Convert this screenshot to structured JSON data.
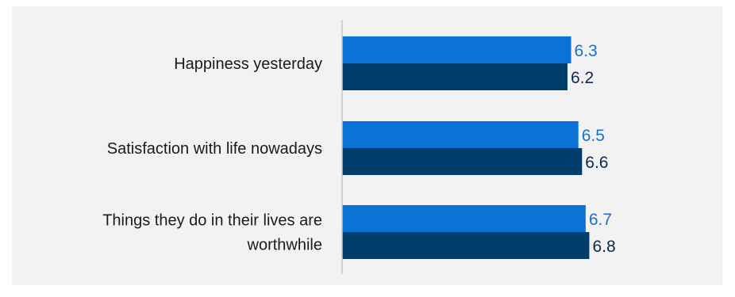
{
  "chart_data": {
    "type": "bar",
    "orientation": "horizontal",
    "categories": [
      [
        "Happiness yesterday"
      ],
      [
        "Satisfaction with life nowadays"
      ],
      [
        "Things they do in their lives are",
        "worthwhile"
      ]
    ],
    "series": [
      {
        "values": [
          6.3,
          6.5,
          6.7
        ],
        "color": "#0b72d6",
        "label_color": "#1a6fd0"
      },
      {
        "values": [
          6.2,
          6.6,
          6.8
        ],
        "color": "#003d6b",
        "label_color": "#0d2a4a"
      }
    ],
    "xlim": [
      0,
      10
    ],
    "grid": false,
    "axis_line_color": "#c8c8c8",
    "background": "#f2f2f2"
  }
}
